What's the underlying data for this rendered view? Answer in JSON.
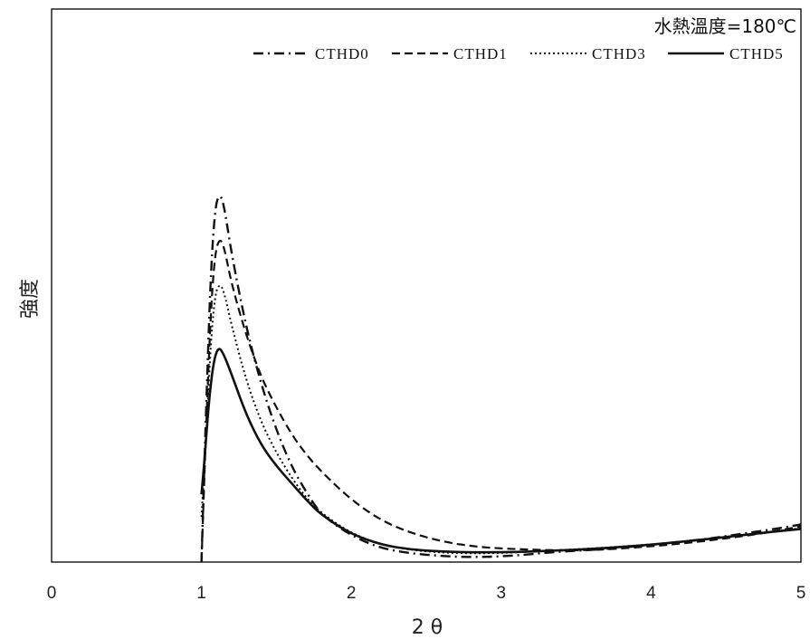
{
  "chart_data": {
    "type": "line",
    "title": "",
    "annotation": "水熱溫度=180℃",
    "xlabel": "2 θ",
    "ylabel": "強度",
    "xlim": [
      0,
      5
    ],
    "ylim": [
      0,
      100
    ],
    "xticks": [
      "0",
      "1",
      "2",
      "3",
      "4",
      "5"
    ],
    "yticks_shown": false,
    "grid": false,
    "legend_position": "top-right",
    "series": [
      {
        "name": "CTHD0",
        "style": "dashdot",
        "color": "#111111",
        "x": [
          1.0,
          1.03,
          1.06,
          1.09,
          1.12,
          1.15,
          1.2,
          1.3,
          1.4,
          1.5,
          1.6,
          1.7,
          1.8,
          2.0,
          2.2,
          2.4,
          2.6,
          2.8,
          3.0,
          3.2,
          3.4,
          3.6,
          3.8,
          4.0,
          4.2,
          4.4,
          4.6,
          4.8,
          5.0
        ],
        "y": [
          0,
          40,
          75,
          94,
          98,
          95,
          82,
          62,
          47,
          35,
          25.5,
          18.5,
          12.5,
          7,
          3.6,
          2.3,
          1.6,
          1.3,
          1.5,
          2.1,
          2.8,
          3.2,
          3.8,
          4.6,
          5.4,
          6.3,
          7.5,
          8.6,
          10
        ]
      },
      {
        "name": "CTHD1",
        "style": "dashed",
        "color": "#111111",
        "x": [
          1.0,
          1.03,
          1.06,
          1.09,
          1.12,
          1.15,
          1.2,
          1.3,
          1.4,
          1.5,
          1.6,
          1.7,
          1.8,
          2.0,
          2.2,
          2.4,
          2.6,
          2.8,
          3.0,
          3.2,
          3.4,
          3.6,
          3.8,
          4.0,
          4.2,
          4.4,
          4.6,
          4.8,
          5.0
        ],
        "y": [
          0,
          35,
          65,
          82,
          86,
          84,
          74,
          60,
          49,
          41,
          34,
          28.5,
          24,
          16.5,
          11,
          7.7,
          5.5,
          4.2,
          3.6,
          3.3,
          3.1,
          3.2,
          3.6,
          4.2,
          4.9,
          5.8,
          6.8,
          8.0,
          9.5
        ]
      },
      {
        "name": "CTHD3",
        "style": "dotted",
        "color": "#111111",
        "x": [
          1.0,
          1.03,
          1.06,
          1.09,
          1.12,
          1.15,
          1.2,
          1.3,
          1.4,
          1.5,
          1.6,
          1.7,
          1.8,
          2.0,
          2.2,
          2.4,
          2.6,
          2.8,
          3.0,
          3.2,
          3.4,
          3.6,
          3.8,
          4.0,
          4.2,
          4.4,
          4.6,
          4.8,
          5.0
        ],
        "y": [
          12,
          32,
          57,
          71,
          74,
          72,
          63,
          48,
          37,
          29,
          22.5,
          17,
          13,
          7.6,
          4.6,
          3.2,
          2.5,
          2.3,
          2.4,
          2.8,
          3.2,
          3.6,
          4.1,
          4.7,
          5.4,
          6.2,
          7.1,
          8.0,
          9.0
        ]
      },
      {
        "name": "CTHD5",
        "style": "solid",
        "color": "#111111",
        "x": [
          1.0,
          1.02,
          1.05,
          1.08,
          1.11,
          1.14,
          1.2,
          1.3,
          1.4,
          1.5,
          1.6,
          1.7,
          1.8,
          2.0,
          2.2,
          2.4,
          2.6,
          2.8,
          3.0,
          3.2,
          3.4,
          3.6,
          3.8,
          4.0,
          4.2,
          4.4,
          4.6,
          4.8,
          5.0
        ],
        "y": [
          18,
          27,
          43,
          53,
          57,
          56,
          50,
          39,
          31,
          25.5,
          21,
          16.5,
          12.5,
          7.4,
          4.6,
          3.3,
          2.8,
          2.6,
          2.6,
          2.8,
          3.1,
          3.5,
          4.0,
          4.6,
          5.4,
          6.2,
          7.1,
          8.0,
          8.8
        ]
      }
    ]
  }
}
